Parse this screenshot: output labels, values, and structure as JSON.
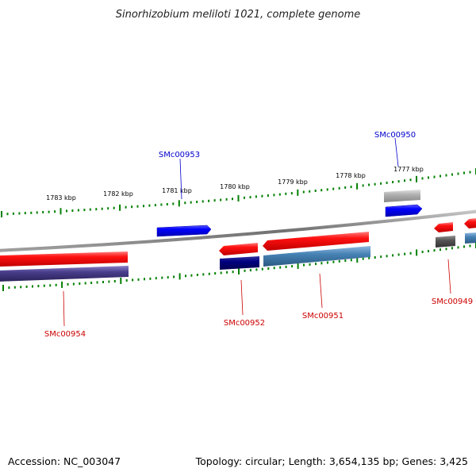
{
  "header": {
    "title": "Sinorhizobium meliloti 1021, complete genome"
  },
  "footer": {
    "accession": "Accession: NC_003047",
    "summary": "Topology: circular; Length: 3,654,135 bp; Genes: 3,425"
  },
  "colors": {
    "forward_gene": "#ff0000",
    "forward_cds": "#0000ff",
    "reverse_gene": "#ff0000",
    "reverse_cds_dark": "#000080",
    "reverse_cds_steel": "#4682b4",
    "reverse_cds_slate": "#483d8b",
    "pseudo_grey": "#a9a9a9",
    "dark_grey": "#555555",
    "backbone": "#808080",
    "tick": "#008000",
    "forward_label": "#0000cc",
    "reverse_label": "#cc0000"
  },
  "scale": {
    "labels": [
      "1783 kbp",
      "1782 kbp",
      "1781 kbp",
      "1780 kbp",
      "1779 kbp",
      "1778 kbp",
      "1777 kbp"
    ]
  },
  "gene_labels": {
    "forward": [
      "SMc00953",
      "SMc00950"
    ],
    "reverse": [
      "SMc00954",
      "SMc00952",
      "SMc00951",
      "SMc00949"
    ]
  },
  "features": {
    "forward_blocks": [
      {
        "id": "smc00953",
        "color": "forward_cds"
      },
      {
        "id": "smc00950-cds",
        "color": "forward_cds"
      },
      {
        "id": "smc00950-pseudo",
        "color": "pseudo_grey"
      }
    ],
    "reverse_blocks": [
      {
        "id": "smc00954-gene",
        "color": "reverse_gene"
      },
      {
        "id": "smc00954-cds",
        "color": "reverse_cds_slate"
      },
      {
        "id": "smc00952-gene",
        "color": "reverse_gene"
      },
      {
        "id": "smc00952-cds",
        "color": "reverse_cds_dark"
      },
      {
        "id": "smc00951-gene",
        "color": "reverse_gene"
      },
      {
        "id": "smc00951-cds",
        "color": "reverse_cds_steel"
      },
      {
        "id": "smc00949-gene",
        "color": "reverse_gene"
      },
      {
        "id": "smc00949-cds",
        "color": "dark_grey"
      },
      {
        "id": "edge-gene",
        "color": "reverse_gene"
      },
      {
        "id": "edge-cds",
        "color": "reverse_cds_steel"
      }
    ]
  }
}
